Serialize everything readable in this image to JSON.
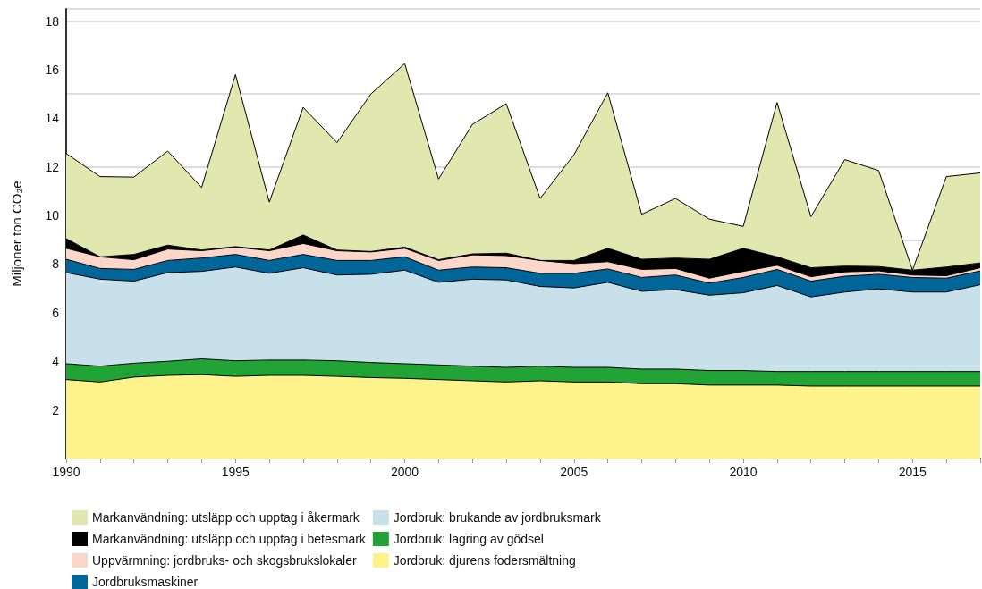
{
  "chart_data": {
    "type": "area",
    "stacked": true,
    "ylabel": "Miljoner ton CO₂e",
    "x": [
      1990,
      1991,
      1992,
      1993,
      1994,
      1995,
      1996,
      1997,
      1998,
      1999,
      2000,
      2001,
      2002,
      2003,
      2004,
      2005,
      2006,
      2007,
      2008,
      2009,
      2010,
      2011,
      2012,
      2013,
      2014,
      2015,
      2016,
      2017
    ],
    "xlim": [
      1990,
      2017
    ],
    "xticks": [
      1990,
      {
        "value": 1991,
        "label": null
      },
      {
        "value": 1992,
        "label": null
      },
      {
        "value": 1993,
        "label": null
      },
      {
        "value": 1994,
        "label": null
      },
      1995,
      {
        "value": 1996,
        "label": null
      },
      {
        "value": 1997,
        "label": null
      },
      {
        "value": 1998,
        "label": null
      },
      {
        "value": 1999,
        "label": null
      },
      2000,
      {
        "value": 2001,
        "label": null
      },
      {
        "value": 2002,
        "label": null
      },
      {
        "value": 2003,
        "label": null
      },
      {
        "value": 2004,
        "label": null
      },
      2005,
      {
        "value": 2006,
        "label": null
      },
      {
        "value": 2007,
        "label": null
      },
      {
        "value": 2008,
        "label": null
      },
      {
        "value": 2009,
        "label": null
      },
      2010,
      {
        "value": 2011,
        "label": null
      },
      {
        "value": 2012,
        "label": null
      },
      {
        "value": 2013,
        "label": null
      },
      {
        "value": 2014,
        "label": null
      },
      2015,
      {
        "value": 2016,
        "label": null
      },
      {
        "value": 2017,
        "label": null
      }
    ],
    "ylim": [
      0,
      18.5
    ],
    "yticks": [
      2,
      4,
      6,
      8,
      10,
      12,
      14,
      16,
      18
    ],
    "grid": "y",
    "legend": "bottom",
    "marker": "none",
    "line_style": "solid",
    "series": [
      {
        "name": "Jordbruk: djurens fodersmältning",
        "color": "#fef28a",
        "values": [
          3.25,
          3.15,
          3.35,
          3.42,
          3.45,
          3.38,
          3.42,
          3.42,
          3.38,
          3.33,
          3.3,
          3.25,
          3.2,
          3.15,
          3.2,
          3.15,
          3.15,
          3.08,
          3.08,
          3.02,
          3.02,
          3.02,
          2.98,
          2.98,
          2.98,
          2.98,
          2.98,
          2.98
        ]
      },
      {
        "name": "Jordbruk: lagring av gödsel",
        "color": "#22a336",
        "values": [
          0.65,
          0.65,
          0.57,
          0.58,
          0.65,
          0.64,
          0.63,
          0.63,
          0.64,
          0.62,
          0.6,
          0.6,
          0.6,
          0.6,
          0.6,
          0.6,
          0.6,
          0.6,
          0.6,
          0.6,
          0.6,
          0.56,
          0.6,
          0.6,
          0.6,
          0.6,
          0.6,
          0.6
        ]
      },
      {
        "name": "Jordbruk: brukande av jordbruksmark",
        "color": "#c8e0ea",
        "values": [
          3.75,
          3.58,
          3.38,
          3.65,
          3.6,
          3.86,
          3.57,
          3.8,
          3.53,
          3.63,
          3.85,
          3.4,
          3.58,
          3.6,
          3.28,
          3.27,
          3.5,
          3.2,
          3.27,
          3.1,
          3.2,
          3.54,
          3.07,
          3.27,
          3.4,
          3.27,
          3.27,
          3.57
        ]
      },
      {
        "name": "Jordbruksmaskiner",
        "color": "#006699",
        "values": [
          0.55,
          0.44,
          0.48,
          0.5,
          0.55,
          0.52,
          0.53,
          0.55,
          0.6,
          0.57,
          0.55,
          0.5,
          0.5,
          0.5,
          0.54,
          0.6,
          0.55,
          0.57,
          0.6,
          0.5,
          0.63,
          0.66,
          0.65,
          0.65,
          0.6,
          0.6,
          0.57,
          0.57
        ]
      },
      {
        "name": "Uppvärmning: jordbruks- och skogsbrukslokaler",
        "color": "#fcd6c8",
        "values": [
          0.45,
          0.48,
          0.4,
          0.47,
          0.3,
          0.3,
          0.4,
          0.45,
          0.4,
          0.35,
          0.35,
          0.4,
          0.5,
          0.5,
          0.53,
          0.4,
          0.3,
          0.33,
          0.27,
          0.2,
          0.25,
          0.17,
          0.18,
          0.18,
          0.14,
          0.1,
          0.1,
          0.13
        ]
      },
      {
        "name": "Markanvändning: utsläpp och upptag i betesmark",
        "color": "#000000",
        "values": [
          0.4,
          0,
          0.22,
          0.16,
          0.03,
          0.02,
          0.03,
          0.35,
          0.03,
          0.02,
          0.05,
          0.03,
          0.04,
          0.1,
          0,
          0.13,
          0.55,
          0.42,
          0.43,
          0.78,
          0.95,
          0.35,
          0.37,
          0.24,
          0.18,
          0.2,
          0.36,
          0.2
        ]
      },
      {
        "name": "Markanvändning: utsläpp och upptag i åkermark",
        "color": "#e0e8b0",
        "values": [
          3.5,
          3.3,
          3.18,
          3.87,
          2.57,
          7.08,
          1.97,
          5.25,
          4.42,
          6.48,
          7.55,
          3.32,
          5.33,
          6.15,
          2.55,
          4.35,
          6.4,
          1.85,
          2.45,
          1.65,
          0.9,
          6.35,
          2.1,
          4.38,
          3.95,
          0,
          3.72,
          3.7
        ]
      }
    ]
  }
}
